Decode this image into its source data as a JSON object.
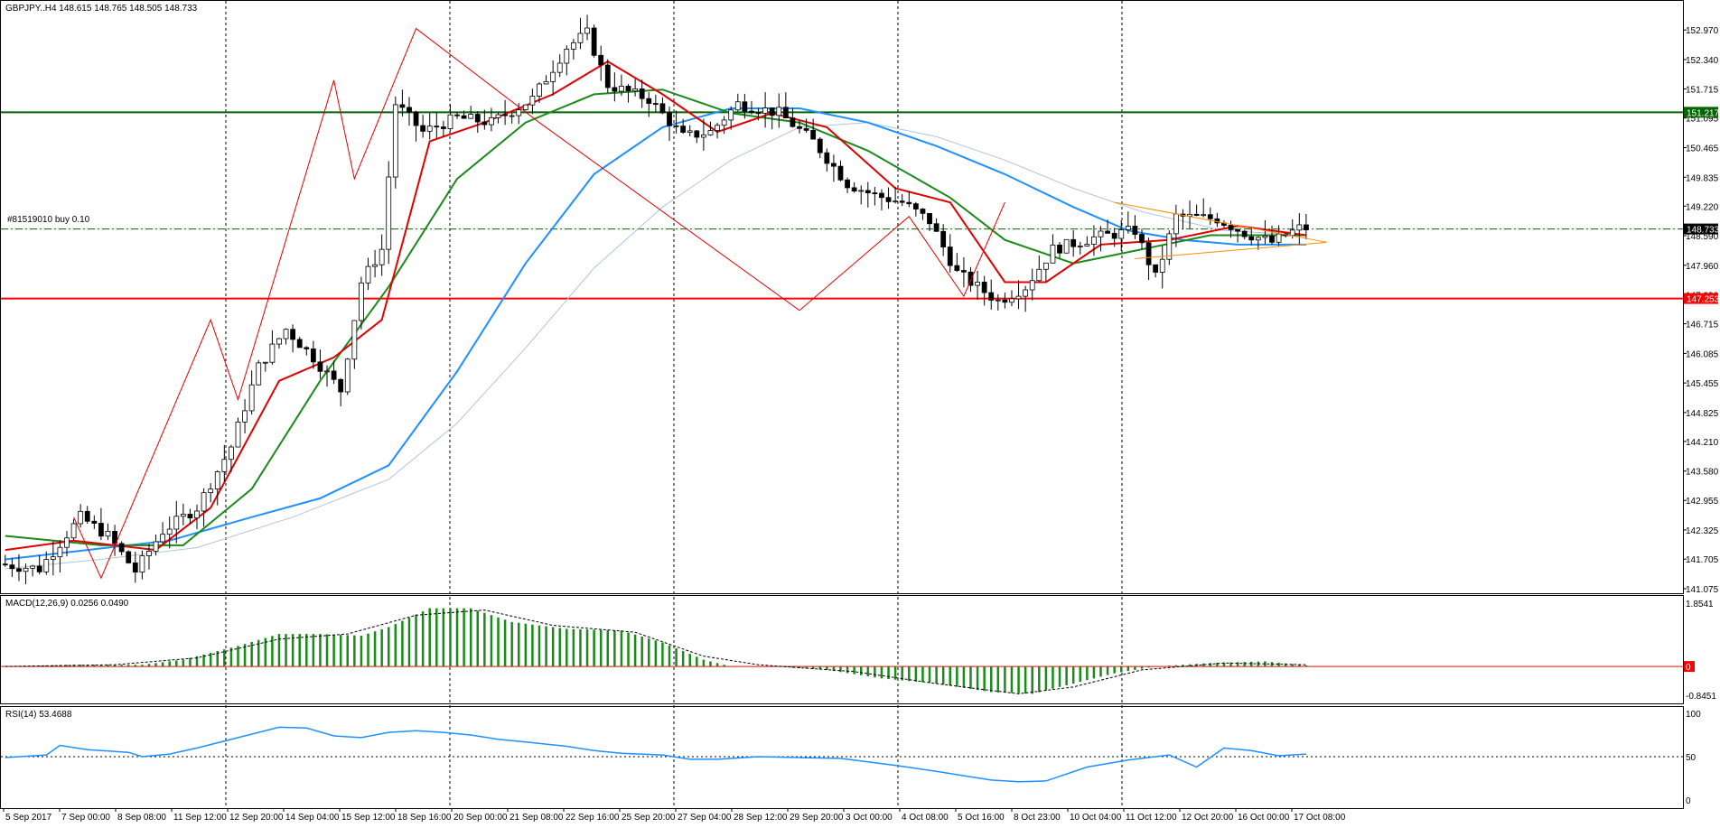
{
  "window": {
    "title": "GBPJPY..H4 148.615 148.765 148.505 148.733",
    "order_label": "#81519010 buy 0.10"
  },
  "colors": {
    "background": "#ffffff",
    "bull_candle": "#ffffff",
    "bear_candle": "#000000",
    "ma_fast": "#e00000",
    "ma_mid": "#1a8a1a",
    "ma_slow": "#1e90ff",
    "ma_slowest": "#b0c4de",
    "support_line": "#ff0000",
    "resistance_line": "#006400",
    "macd_histogram": "#1a8a1a",
    "macd_signal": "#000000",
    "rsi_line": "#1e90ff",
    "triangle": "#ff8c00"
  },
  "chart_data": [
    {
      "type": "candlestick",
      "symbol": "GBPJPY",
      "timeframe": "H4",
      "ohlc_header": {
        "open": 148.615,
        "high": 148.765,
        "low": 148.505,
        "close": 148.733
      },
      "y_ticks": [
        "152.970",
        "152.340",
        "151.715",
        "151.095",
        "150.465",
        "149.835",
        "149.220",
        "148.590",
        "147.960",
        "147.330",
        "146.715",
        "146.085",
        "145.455",
        "144.825",
        "144.210",
        "143.580",
        "142.955",
        "142.325",
        "141.705",
        "141.075"
      ],
      "ylim": [
        141.075,
        153.3
      ],
      "x_ticks": [
        "5 Sep 2017",
        "7 Sep 00:00",
        "8 Sep 08:00",
        "11 Sep 12:00",
        "12 Sep 20:00",
        "14 Sep 04:00",
        "15 Sep 12:00",
        "18 Sep 16:00",
        "20 Sep 00:00",
        "21 Sep 08:00",
        "22 Sep 16:00",
        "25 Sep 20:00",
        "27 Sep 04:00",
        "28 Sep 12:00",
        "29 Sep 20:00",
        "3 Oct 00:00",
        "4 Oct 08:00",
        "5 Oct 16:00",
        "8 Oct 23:00",
        "10 Oct 04:00",
        "11 Oct 12:00",
        "12 Oct 20:00",
        "16 Oct 00:00",
        "17 Oct 08:00"
      ],
      "horizontal_lines": [
        {
          "label": "151.217",
          "value": 151.217,
          "style": "solid",
          "color": "#006400"
        },
        {
          "label": "148.733",
          "value": 148.733,
          "style": "dash-dot",
          "color": "#006400"
        },
        {
          "label": "147.253",
          "value": 147.253,
          "style": "solid",
          "color": "#ff0000"
        }
      ],
      "price_path": [
        [
          0,
          141.6
        ],
        [
          6,
          141.5
        ],
        [
          12,
          142.6
        ],
        [
          16,
          142.2
        ],
        [
          20,
          141.45
        ],
        [
          24,
          142.3
        ],
        [
          29,
          142.8
        ],
        [
          34,
          144.1
        ],
        [
          38,
          145.8
        ],
        [
          42,
          146.6
        ],
        [
          46,
          146.0
        ],
        [
          50,
          145.3
        ],
        [
          53,
          147.6
        ],
        [
          56,
          148.3
        ],
        [
          58,
          151.4
        ],
        [
          62,
          150.8
        ],
        [
          67,
          151.1
        ],
        [
          72,
          151.0
        ],
        [
          78,
          151.5
        ],
        [
          83,
          152.6
        ],
        [
          86,
          152.9
        ],
        [
          89,
          151.8
        ],
        [
          95,
          151.5
        ],
        [
          100,
          150.7
        ],
        [
          104,
          150.8
        ],
        [
          108,
          151.4
        ],
        [
          114,
          151.2
        ],
        [
          119,
          150.6
        ],
        [
          124,
          149.7
        ],
        [
          128,
          149.45
        ],
        [
          132,
          149.3
        ],
        [
          136,
          148.9
        ],
        [
          140,
          147.8
        ],
        [
          146,
          147.2
        ],
        [
          150,
          147.5
        ],
        [
          154,
          148.3
        ],
        [
          160,
          148.55
        ],
        [
          166,
          148.7
        ],
        [
          169,
          147.7
        ],
        [
          172,
          149.0
        ],
        [
          178,
          148.95
        ],
        [
          182,
          148.65
        ],
        [
          186,
          148.45
        ],
        [
          190,
          148.75
        ]
      ],
      "ma_fast_path": [
        [
          0,
          141.9
        ],
        [
          10,
          142.1
        ],
        [
          22,
          141.9
        ],
        [
          30,
          142.8
        ],
        [
          40,
          145.5
        ],
        [
          48,
          146.0
        ],
        [
          55,
          146.8
        ],
        [
          62,
          150.6
        ],
        [
          70,
          151.0
        ],
        [
          80,
          151.6
        ],
        [
          88,
          152.3
        ],
        [
          96,
          151.6
        ],
        [
          104,
          150.8
        ],
        [
          112,
          151.2
        ],
        [
          120,
          150.9
        ],
        [
          130,
          149.6
        ],
        [
          138,
          149.3
        ],
        [
          146,
          147.6
        ],
        [
          152,
          147.6
        ],
        [
          160,
          148.4
        ],
        [
          170,
          148.5
        ],
        [
          180,
          148.8
        ],
        [
          190,
          148.6
        ]
      ],
      "ma_mid_path": [
        [
          0,
          142.2
        ],
        [
          14,
          142.0
        ],
        [
          26,
          142.0
        ],
        [
          36,
          143.2
        ],
        [
          46,
          145.5
        ],
        [
          56,
          147.5
        ],
        [
          66,
          149.8
        ],
        [
          76,
          151.0
        ],
        [
          86,
          151.6
        ],
        [
          96,
          151.7
        ],
        [
          106,
          151.2
        ],
        [
          116,
          151.0
        ],
        [
          126,
          150.4
        ],
        [
          138,
          149.4
        ],
        [
          146,
          148.5
        ],
        [
          156,
          148.0
        ],
        [
          166,
          148.3
        ],
        [
          176,
          148.6
        ],
        [
          190,
          148.6
        ]
      ],
      "ma_slow_path": [
        [
          0,
          141.7
        ],
        [
          12,
          141.9
        ],
        [
          24,
          142.1
        ],
        [
          36,
          142.6
        ],
        [
          46,
          143.0
        ],
        [
          56,
          143.7
        ],
        [
          66,
          145.7
        ],
        [
          76,
          148.0
        ],
        [
          86,
          149.9
        ],
        [
          96,
          150.9
        ],
        [
          106,
          151.3
        ],
        [
          116,
          151.3
        ],
        [
          126,
          151.0
        ],
        [
          136,
          150.5
        ],
        [
          146,
          149.9
        ],
        [
          156,
          149.2
        ],
        [
          164,
          148.7
        ],
        [
          172,
          148.5
        ],
        [
          180,
          148.4
        ],
        [
          190,
          148.4
        ]
      ],
      "ma_slowest_path": [
        [
          0,
          141.5
        ],
        [
          14,
          141.7
        ],
        [
          28,
          141.95
        ],
        [
          42,
          142.6
        ],
        [
          56,
          143.4
        ],
        [
          66,
          144.6
        ],
        [
          76,
          146.2
        ],
        [
          86,
          147.9
        ],
        [
          96,
          149.2
        ],
        [
          106,
          150.2
        ],
        [
          116,
          150.9
        ],
        [
          126,
          151.0
        ],
        [
          136,
          150.7
        ],
        [
          146,
          150.2
        ],
        [
          156,
          149.6
        ],
        [
          166,
          149.1
        ],
        [
          178,
          148.7
        ],
        [
          190,
          148.6
        ]
      ],
      "zigzag_red": [
        [
          10,
          142.6
        ],
        [
          14,
          141.3
        ],
        [
          30,
          146.8
        ],
        [
          34,
          145.1
        ],
        [
          48,
          151.9
        ],
        [
          51,
          149.8
        ],
        [
          60,
          153.0
        ],
        [
          78,
          151.0
        ],
        [
          116,
          147.0
        ],
        [
          132,
          149.0
        ],
        [
          140,
          147.3
        ],
        [
          146,
          149.3
        ]
      ]
    },
    {
      "type": "bar",
      "name": "MACD(12,26,9) 0.0256 0.0490",
      "y_ticks": [
        "1.8541",
        "0.0000",
        "-0.8451"
      ],
      "ylim": [
        -1.0,
        1.85
      ],
      "histogram_path": [
        [
          0,
          0.0
        ],
        [
          10,
          0.05
        ],
        [
          20,
          0.05
        ],
        [
          26,
          0.2
        ],
        [
          34,
          0.6
        ],
        [
          40,
          0.95
        ],
        [
          46,
          0.95
        ],
        [
          52,
          0.9
        ],
        [
          56,
          1.15
        ],
        [
          62,
          1.7
        ],
        [
          68,
          1.7
        ],
        [
          74,
          1.3
        ],
        [
          82,
          1.1
        ],
        [
          90,
          1.05
        ],
        [
          96,
          0.7
        ],
        [
          102,
          0.2
        ],
        [
          106,
          0.0
        ],
        [
          112,
          0.0
        ],
        [
          120,
          -0.1
        ],
        [
          128,
          -0.35
        ],
        [
          136,
          -0.5
        ],
        [
          144,
          -0.75
        ],
        [
          150,
          -0.8
        ],
        [
          156,
          -0.5
        ],
        [
          162,
          -0.2
        ],
        [
          168,
          0.0
        ],
        [
          176,
          0.1
        ],
        [
          184,
          0.15
        ],
        [
          190,
          0.03
        ]
      ],
      "signal_path": [
        [
          0,
          0.0
        ],
        [
          16,
          0.05
        ],
        [
          28,
          0.25
        ],
        [
          40,
          0.8
        ],
        [
          50,
          0.95
        ],
        [
          60,
          1.5
        ],
        [
          70,
          1.65
        ],
        [
          80,
          1.2
        ],
        [
          92,
          1.0
        ],
        [
          102,
          0.3
        ],
        [
          110,
          0.05
        ],
        [
          124,
          -0.15
        ],
        [
          136,
          -0.5
        ],
        [
          148,
          -0.8
        ],
        [
          156,
          -0.6
        ],
        [
          166,
          -0.1
        ],
        [
          178,
          0.1
        ],
        [
          190,
          0.05
        ]
      ]
    },
    {
      "type": "line",
      "name": "RSI(14) 53.4688",
      "y_ticks": [
        "100",
        "50",
        "0"
      ],
      "ylim": [
        0,
        100
      ],
      "levels": [
        50
      ],
      "values_path": [
        [
          0,
          49
        ],
        [
          6,
          52
        ],
        [
          8,
          63
        ],
        [
          12,
          58
        ],
        [
          18,
          55
        ],
        [
          20,
          50
        ],
        [
          24,
          53
        ],
        [
          28,
          60
        ],
        [
          34,
          72
        ],
        [
          40,
          84
        ],
        [
          44,
          83
        ],
        [
          48,
          74
        ],
        [
          52,
          72
        ],
        [
          56,
          78
        ],
        [
          60,
          80
        ],
        [
          64,
          78
        ],
        [
          68,
          75
        ],
        [
          72,
          70
        ],
        [
          76,
          67
        ],
        [
          82,
          62
        ],
        [
          86,
          57
        ],
        [
          90,
          54
        ],
        [
          96,
          52
        ],
        [
          100,
          47
        ],
        [
          104,
          47
        ],
        [
          110,
          50
        ],
        [
          116,
          49
        ],
        [
          122,
          48
        ],
        [
          126,
          44
        ],
        [
          130,
          40
        ],
        [
          136,
          33
        ],
        [
          140,
          28
        ],
        [
          144,
          23
        ],
        [
          148,
          21
        ],
        [
          152,
          22
        ],
        [
          158,
          38
        ],
        [
          164,
          46
        ],
        [
          170,
          52
        ],
        [
          174,
          38
        ],
        [
          178,
          60
        ],
        [
          182,
          57
        ],
        [
          186,
          51
        ],
        [
          190,
          53
        ]
      ]
    }
  ]
}
